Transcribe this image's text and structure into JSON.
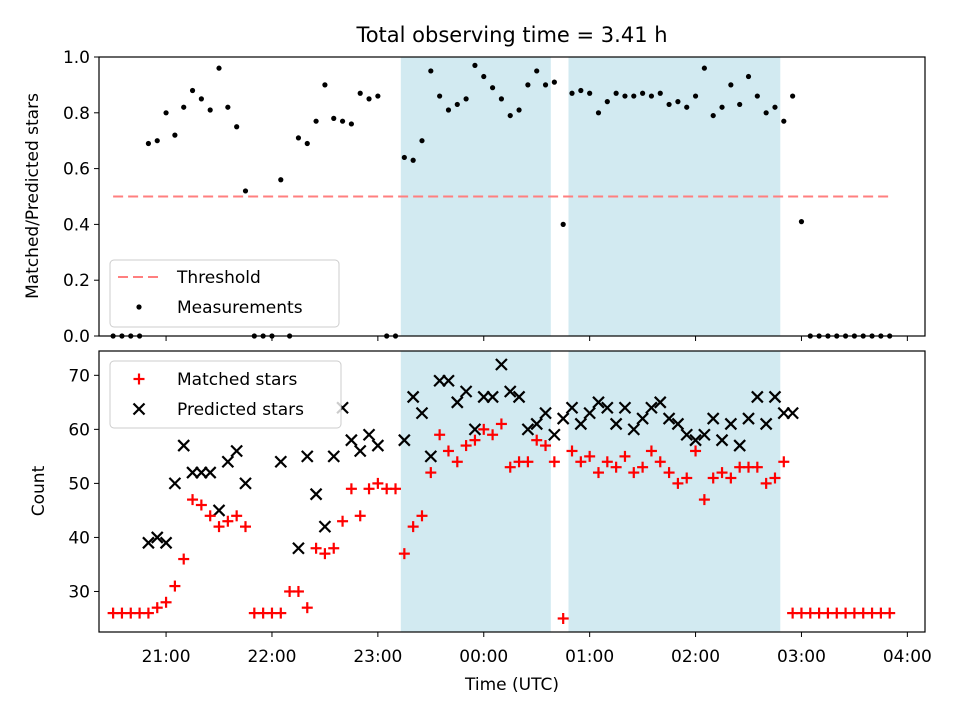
{
  "title": "Total observing time = 3.41 h",
  "colors": {
    "threshold": "#ff7f7f",
    "measurement": "#000000",
    "matched": "#ff0000",
    "predicted": "#000000",
    "shade": "#add8e6"
  },
  "chart_data": [
    {
      "type": "scatter",
      "ylabel": "Matched/Predicted stars",
      "ylim": [
        0,
        1.0
      ],
      "yticks": [
        "0.0",
        "0.2",
        "0.4",
        "0.6",
        "0.8",
        "1.0"
      ],
      "xlim": [
        "20:22",
        "04:10"
      ],
      "shaded_intervals": [
        [
          "23:13",
          "00:38"
        ],
        [
          "00:48",
          "02:48"
        ]
      ],
      "threshold": {
        "name": "Threshold",
        "value": 0.5,
        "x_range": [
          "20:30",
          "03:50"
        ]
      },
      "legend": {
        "placement": "lower-left",
        "entries": [
          "Threshold",
          "Measurements"
        ]
      },
      "series": [
        {
          "name": "Measurements",
          "points": [
            [
              "20:30",
              0
            ],
            [
              "20:35",
              0
            ],
            [
              "20:40",
              0
            ],
            [
              "20:45",
              0
            ],
            [
              "20:50",
              0.69
            ],
            [
              "20:55",
              0.7
            ],
            [
              "21:00",
              0.8
            ],
            [
              "21:05",
              0.72
            ],
            [
              "21:10",
              0.82
            ],
            [
              "21:15",
              0.88
            ],
            [
              "21:20",
              0.85
            ],
            [
              "21:25",
              0.81
            ],
            [
              "21:30",
              0.96
            ],
            [
              "21:35",
              0.82
            ],
            [
              "21:40",
              0.75
            ],
            [
              "21:45",
              0.52
            ],
            [
              "21:50",
              0
            ],
            [
              "21:55",
              0
            ],
            [
              "22:00",
              0
            ],
            [
              "22:05",
              0.56
            ],
            [
              "22:10",
              0
            ],
            [
              "22:15",
              0.71
            ],
            [
              "22:20",
              0.69
            ],
            [
              "22:25",
              0.77
            ],
            [
              "22:30",
              0.9
            ],
            [
              "22:35",
              0.78
            ],
            [
              "22:40",
              0.77
            ],
            [
              "22:45",
              0.76
            ],
            [
              "22:50",
              0.87
            ],
            [
              "22:55",
              0.85
            ],
            [
              "23:00",
              0.86
            ],
            [
              "23:05",
              0
            ],
            [
              "23:10",
              0
            ],
            [
              "23:15",
              0.64
            ],
            [
              "23:20",
              0.63
            ],
            [
              "23:25",
              0.7
            ],
            [
              "23:30",
              0.95
            ],
            [
              "23:35",
              0.86
            ],
            [
              "23:40",
              0.81
            ],
            [
              "23:45",
              0.83
            ],
            [
              "23:50",
              0.85
            ],
            [
              "23:55",
              0.97
            ],
            [
              "00:00",
              0.93
            ],
            [
              "00:05",
              0.89
            ],
            [
              "00:10",
              0.85
            ],
            [
              "00:15",
              0.79
            ],
            [
              "00:20",
              0.81
            ],
            [
              "00:25",
              0.9
            ],
            [
              "00:30",
              0.95
            ],
            [
              "00:35",
              0.9
            ],
            [
              "00:40",
              0.91
            ],
            [
              "00:45",
              0.4
            ],
            [
              "00:50",
              0.87
            ],
            [
              "00:55",
              0.88
            ],
            [
              "01:00",
              0.87
            ],
            [
              "01:05",
              0.8
            ],
            [
              "01:10",
              0.84
            ],
            [
              "01:15",
              0.87
            ],
            [
              "01:20",
              0.86
            ],
            [
              "01:25",
              0.86
            ],
            [
              "01:30",
              0.87
            ],
            [
              "01:35",
              0.86
            ],
            [
              "01:40",
              0.87
            ],
            [
              "01:45",
              0.83
            ],
            [
              "01:50",
              0.84
            ],
            [
              "01:55",
              0.82
            ],
            [
              "02:00",
              0.86
            ],
            [
              "02:05",
              0.96
            ],
            [
              "02:10",
              0.79
            ],
            [
              "02:15",
              0.82
            ],
            [
              "02:20",
              0.9
            ],
            [
              "02:25",
              0.83
            ],
            [
              "02:30",
              0.93
            ],
            [
              "02:35",
              0.86
            ],
            [
              "02:40",
              0.8
            ],
            [
              "02:45",
              0.82
            ],
            [
              "02:50",
              0.77
            ],
            [
              "02:55",
              0.86
            ],
            [
              "03:00",
              0.41
            ],
            [
              "03:05",
              0
            ],
            [
              "03:10",
              0
            ],
            [
              "03:15",
              0
            ],
            [
              "03:20",
              0
            ],
            [
              "03:25",
              0
            ],
            [
              "03:30",
              0
            ],
            [
              "03:35",
              0
            ],
            [
              "03:40",
              0
            ],
            [
              "03:45",
              0
            ],
            [
              "03:50",
              0
            ]
          ]
        }
      ]
    },
    {
      "type": "scatter",
      "xlabel": "Time (UTC)",
      "ylabel": "Count",
      "ylim": [
        22.5,
        74.5
      ],
      "yticks": [
        "30",
        "40",
        "50",
        "60",
        "70"
      ],
      "xticks": [
        "21:00",
        "22:00",
        "23:00",
        "00:00",
        "01:00",
        "02:00",
        "03:00",
        "04:00"
      ],
      "xlim": [
        "20:22",
        "04:10"
      ],
      "shaded_intervals": [
        [
          "23:13",
          "00:38"
        ],
        [
          "00:48",
          "02:48"
        ]
      ],
      "legend": {
        "placement": "top-left",
        "entries": [
          "Matched stars",
          "Predicted stars"
        ]
      },
      "series": [
        {
          "name": "Matched stars",
          "points": [
            [
              "20:30",
              26
            ],
            [
              "20:35",
              26
            ],
            [
              "20:40",
              26
            ],
            [
              "20:45",
              26
            ],
            [
              "20:50",
              26
            ],
            [
              "20:55",
              27
            ],
            [
              "21:00",
              28
            ],
            [
              "21:05",
              31
            ],
            [
              "21:10",
              36
            ],
            [
              "21:15",
              47
            ],
            [
              "21:20",
              46
            ],
            [
              "21:25",
              44
            ],
            [
              "21:30",
              42
            ],
            [
              "21:35",
              43
            ],
            [
              "21:40",
              44
            ],
            [
              "21:45",
              42
            ],
            [
              "21:50",
              26
            ],
            [
              "21:55",
              26
            ],
            [
              "22:00",
              26
            ],
            [
              "22:05",
              26
            ],
            [
              "22:10",
              30
            ],
            [
              "22:15",
              30
            ],
            [
              "22:20",
              27
            ],
            [
              "22:25",
              38
            ],
            [
              "22:30",
              37
            ],
            [
              "22:35",
              38
            ],
            [
              "22:40",
              43
            ],
            [
              "22:45",
              49
            ],
            [
              "22:50",
              44
            ],
            [
              "22:55",
              49
            ],
            [
              "23:00",
              50
            ],
            [
              "23:05",
              49
            ],
            [
              "23:10",
              49
            ],
            [
              "23:15",
              37
            ],
            [
              "23:20",
              42
            ],
            [
              "23:25",
              44
            ],
            [
              "23:30",
              52
            ],
            [
              "23:35",
              59
            ],
            [
              "23:40",
              56
            ],
            [
              "23:45",
              54
            ],
            [
              "23:50",
              57
            ],
            [
              "23:55",
              58
            ],
            [
              "00:00",
              60
            ],
            [
              "00:05",
              59
            ],
            [
              "00:10",
              61
            ],
            [
              "00:15",
              53
            ],
            [
              "00:20",
              54
            ],
            [
              "00:25",
              54
            ],
            [
              "00:30",
              58
            ],
            [
              "00:35",
              57
            ],
            [
              "00:40",
              54
            ],
            [
              "00:45",
              25
            ],
            [
              "00:50",
              56
            ],
            [
              "00:55",
              54
            ],
            [
              "01:00",
              55
            ],
            [
              "01:05",
              52
            ],
            [
              "01:10",
              54
            ],
            [
              "01:15",
              53
            ],
            [
              "01:20",
              55
            ],
            [
              "01:25",
              52
            ],
            [
              "01:30",
              53
            ],
            [
              "01:35",
              56
            ],
            [
              "01:40",
              54
            ],
            [
              "01:45",
              52
            ],
            [
              "01:50",
              50
            ],
            [
              "01:55",
              51
            ],
            [
              "02:00",
              56
            ],
            [
              "02:05",
              47
            ],
            [
              "02:10",
              51
            ],
            [
              "02:15",
              52
            ],
            [
              "02:20",
              51
            ],
            [
              "02:25",
              53
            ],
            [
              "02:30",
              53
            ],
            [
              "02:35",
              53
            ],
            [
              "02:40",
              50
            ],
            [
              "02:45",
              51
            ],
            [
              "02:50",
              54
            ],
            [
              "02:55",
              26
            ],
            [
              "03:00",
              26
            ],
            [
              "03:05",
              26
            ],
            [
              "03:10",
              26
            ],
            [
              "03:15",
              26
            ],
            [
              "03:20",
              26
            ],
            [
              "03:25",
              26
            ],
            [
              "03:30",
              26
            ],
            [
              "03:35",
              26
            ],
            [
              "03:40",
              26
            ],
            [
              "03:45",
              26
            ],
            [
              "03:50",
              26
            ]
          ]
        },
        {
          "name": "Predicted stars",
          "points": [
            [
              "20:50",
              39
            ],
            [
              "20:55",
              40
            ],
            [
              "21:00",
              39
            ],
            [
              "21:05",
              50
            ],
            [
              "21:10",
              57
            ],
            [
              "21:15",
              52
            ],
            [
              "21:20",
              52
            ],
            [
              "21:25",
              52
            ],
            [
              "21:30",
              45
            ],
            [
              "21:35",
              54
            ],
            [
              "21:40",
              56
            ],
            [
              "21:45",
              50
            ],
            [
              "22:05",
              54
            ],
            [
              "22:15",
              38
            ],
            [
              "22:20",
              55
            ],
            [
              "22:25",
              48
            ],
            [
              "22:30",
              42
            ],
            [
              "22:35",
              55
            ],
            [
              "22:40",
              64
            ],
            [
              "22:45",
              58
            ],
            [
              "22:50",
              56
            ],
            [
              "22:55",
              59
            ],
            [
              "23:00",
              57
            ],
            [
              "23:15",
              58
            ],
            [
              "23:20",
              66
            ],
            [
              "23:25",
              63
            ],
            [
              "23:30",
              55
            ],
            [
              "23:35",
              69
            ],
            [
              "23:40",
              69
            ],
            [
              "23:45",
              65
            ],
            [
              "23:50",
              67
            ],
            [
              "23:55",
              60
            ],
            [
              "00:00",
              66
            ],
            [
              "00:05",
              66
            ],
            [
              "00:10",
              72
            ],
            [
              "00:15",
              67
            ],
            [
              "00:20",
              66
            ],
            [
              "00:25",
              60
            ],
            [
              "00:30",
              61
            ],
            [
              "00:35",
              63
            ],
            [
              "00:40",
              59
            ],
            [
              "00:45",
              62
            ],
            [
              "00:50",
              64
            ],
            [
              "00:55",
              61
            ],
            [
              "01:00",
              63
            ],
            [
              "01:05",
              65
            ],
            [
              "01:10",
              64
            ],
            [
              "01:15",
              61
            ],
            [
              "01:20",
              64
            ],
            [
              "01:25",
              60
            ],
            [
              "01:30",
              62
            ],
            [
              "01:35",
              64
            ],
            [
              "01:40",
              65
            ],
            [
              "01:45",
              62
            ],
            [
              "01:50",
              61
            ],
            [
              "01:55",
              59
            ],
            [
              "02:00",
              58
            ],
            [
              "02:05",
              59
            ],
            [
              "02:10",
              62
            ],
            [
              "02:15",
              58
            ],
            [
              "02:20",
              61
            ],
            [
              "02:25",
              57
            ],
            [
              "02:30",
              62
            ],
            [
              "02:35",
              66
            ],
            [
              "02:40",
              61
            ],
            [
              "02:45",
              66
            ],
            [
              "02:50",
              63
            ],
            [
              "02:55",
              63
            ]
          ]
        }
      ]
    }
  ]
}
